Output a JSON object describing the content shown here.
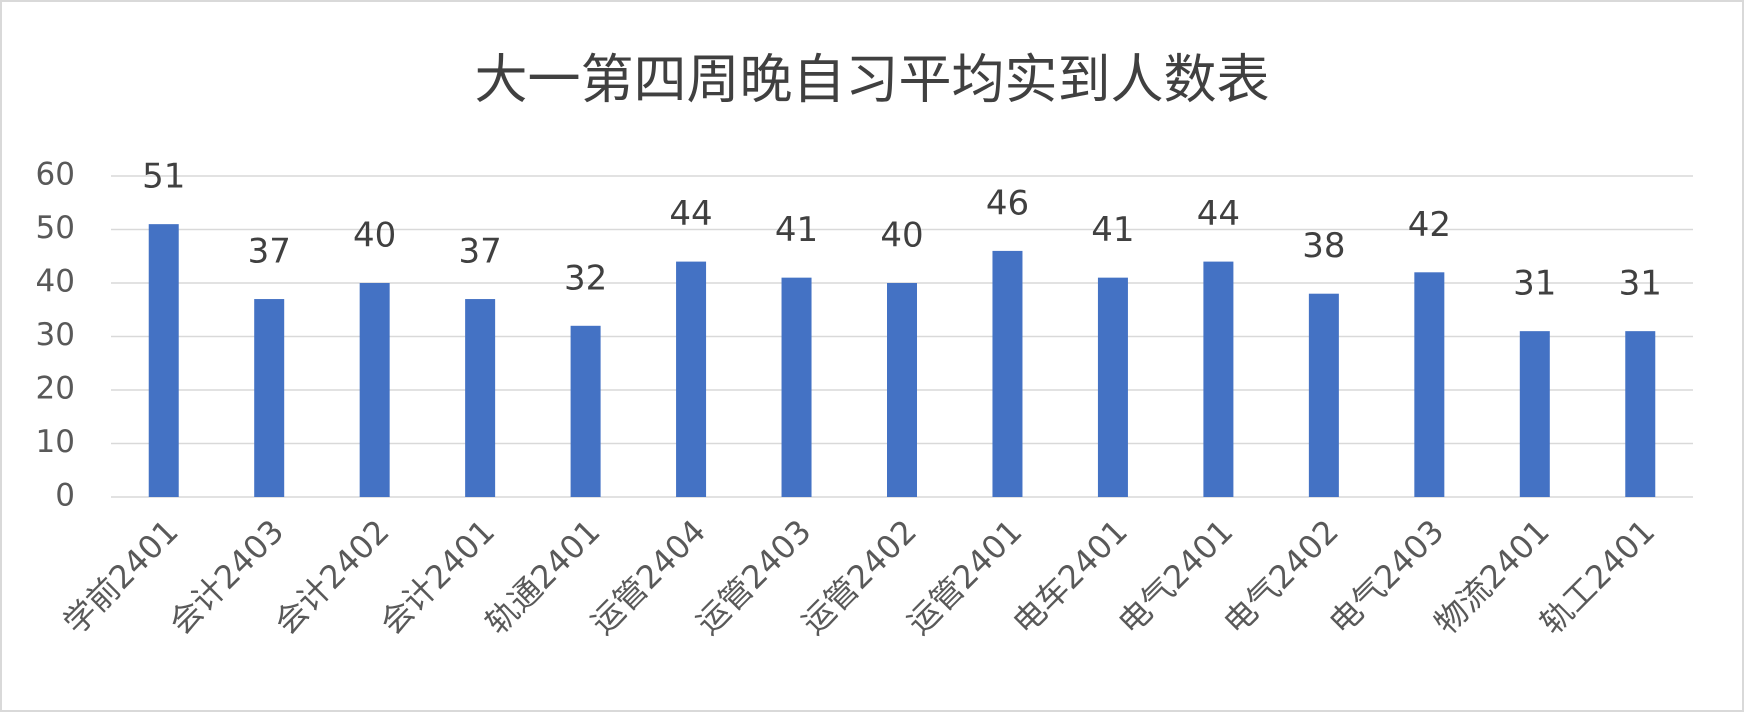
{
  "chart_data": {
    "type": "bar",
    "title": "大一第四周晚自习平均实到人数表",
    "categories": [
      "学前2401",
      "会计2403",
      "会计2402",
      "会计2401",
      "轨通2401",
      "运管2404",
      "运管2403",
      "运管2402",
      "运管2401",
      "电车2401",
      "电气2401",
      "电气2402",
      "电气2403",
      "物流2401",
      "轨工2401"
    ],
    "values": [
      51,
      37,
      40,
      37,
      32,
      44,
      41,
      40,
      46,
      41,
      44,
      38,
      42,
      31,
      31
    ],
    "color": "#4472c4",
    "ylim": [
      0,
      60
    ],
    "yticks": [
      0,
      10,
      20,
      30,
      40,
      50,
      60
    ],
    "grid": true,
    "data_labels": true
  }
}
